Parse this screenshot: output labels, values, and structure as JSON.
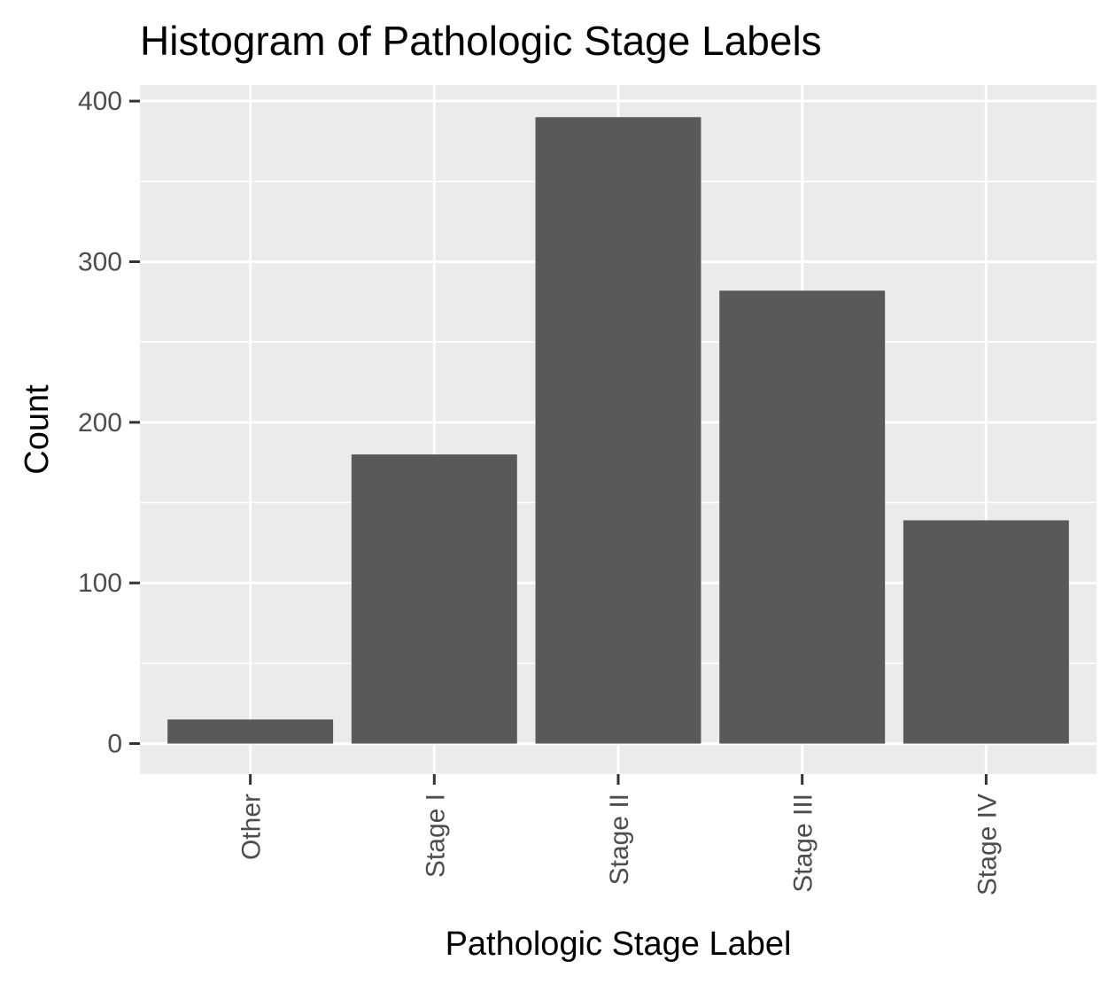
{
  "chart_data": {
    "type": "bar",
    "title": "Histogram of Pathologic Stage Labels",
    "xlabel": "Pathologic Stage Label",
    "ylabel": "Count",
    "categories": [
      "Other",
      "Stage I",
      "Stage II",
      "Stage III",
      "Stage IV"
    ],
    "values": [
      15,
      180,
      390,
      282,
      139
    ],
    "ylim": [
      -19,
      410
    ],
    "yticks": [
      0,
      100,
      200,
      300,
      400
    ],
    "grid": true,
    "legend": "none",
    "colors": {
      "bar": "#595959",
      "panel": "#ebebeb",
      "grid": "#ffffff",
      "tick": "#333333",
      "tick_label": "#4d4d4d"
    }
  }
}
